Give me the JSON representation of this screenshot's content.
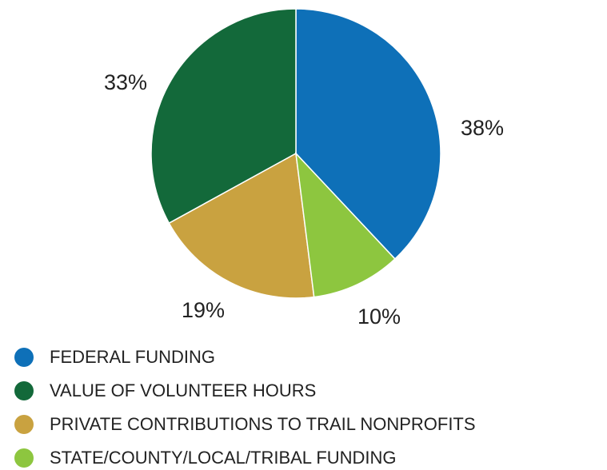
{
  "chart_data": {
    "type": "pie",
    "categories": [
      "FEDERAL FUNDING",
      "VALUE OF VOLUNTEER HOURS",
      "PRIVATE CONTRIBUTIONS TO TRAIL NONPROFITS",
      "STATE/COUNTY/LOCAL/TRIBAL FUNDING"
    ],
    "values": [
      38,
      33,
      19,
      10
    ],
    "value_labels": [
      "38%",
      "33%",
      "19%",
      "10%"
    ],
    "colors": [
      "#0e70b8",
      "#13693a",
      "#c9a240",
      "#8dc63f"
    ],
    "legend": "bottom-left"
  }
}
